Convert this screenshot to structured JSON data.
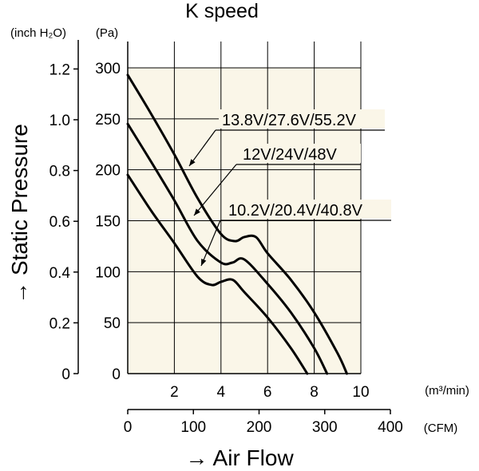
{
  "chart_data": {
    "type": "line",
    "title": "K speed",
    "ylabel": "→ Static Pressure",
    "xlabel": "→ Air Flow",
    "y_units_left": "(inch H₂O)",
    "y_units_right": "(Pa)",
    "x_units_top": "(m³/min)",
    "x_units_bottom": "(CFM)",
    "grid": true,
    "background": "#faf6e8",
    "xlim_m3min": [
      0,
      10
    ],
    "ylim_pa": [
      0,
      300
    ],
    "x_ticks_m3min": [
      "2",
      "4",
      "6",
      "8",
      "10"
    ],
    "x_ticks_cfm": [
      "0",
      "100",
      "200",
      "300",
      "400"
    ],
    "y_ticks_pa": [
      "0",
      "50",
      "100",
      "150",
      "200",
      "250",
      "300"
    ],
    "y_ticks_inch": [
      "0",
      "0.2",
      "0.4",
      "0.6",
      "0.8",
      "1.0",
      "1.2"
    ],
    "series": [
      {
        "name": "13.8V/27.6V/55.2V",
        "x": [
          0,
          1,
          2,
          3,
          4,
          4.6,
          5,
          5.5,
          6,
          7,
          8,
          9,
          9.4
        ],
        "y": [
          293,
          255,
          215,
          172,
          137,
          130,
          134,
          134,
          118,
          92,
          60,
          20,
          0
        ]
      },
      {
        "name": "12V/24V/48V",
        "x": [
          0,
          1,
          2,
          3,
          4,
          4.5,
          5,
          6,
          7,
          8,
          8.55
        ],
        "y": [
          245,
          208,
          170,
          130,
          109,
          109,
          112,
          88,
          60,
          25,
          0
        ]
      },
      {
        "name": "10.2V/20.4V/40.8V",
        "x": [
          0,
          1,
          2,
          3,
          3.6,
          4,
          4.5,
          5,
          6,
          7,
          7.7
        ],
        "y": [
          195,
          160,
          128,
          95,
          87,
          90,
          92,
          80,
          55,
          25,
          0
        ]
      }
    ],
    "labels": [
      "13.8V/27.6V/55.2V",
      "12V/24V/48V",
      "10.2V/20.4V/40.8V"
    ]
  }
}
